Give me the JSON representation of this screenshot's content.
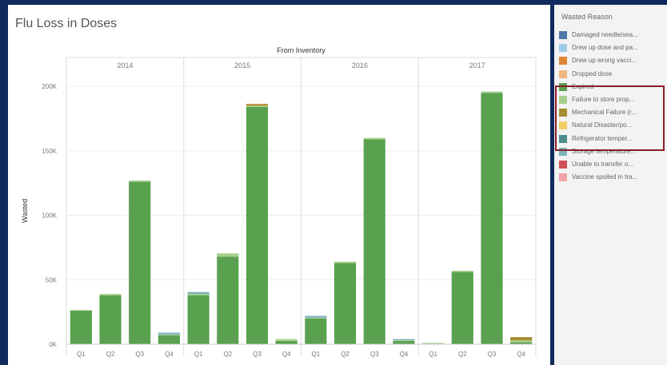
{
  "chart_data": {
    "type": "bar",
    "stacked": true,
    "title": "Flu Loss in Doses",
    "column_header": "From Inventory",
    "ylabel": "Wasted",
    "ylim": [
      0,
      210000
    ],
    "yticks": [
      0,
      50000,
      100000,
      150000,
      200000
    ],
    "ytick_labels": [
      "0K",
      "50K",
      "100K",
      "150K",
      "200K"
    ],
    "years": [
      "2014",
      "2015",
      "2016",
      "2017"
    ],
    "quarters": [
      "Q1",
      "Q2",
      "Q3",
      "Q4"
    ],
    "grid": true,
    "legend_position": "right",
    "series": [
      {
        "name": "Expired",
        "color": "#59a14f",
        "values": [
          [
            26000,
            38000,
            126000,
            7000
          ],
          [
            38000,
            68000,
            184000,
            2500
          ],
          [
            20000,
            63000,
            159000,
            2500
          ],
          [
            500,
            56000,
            195000,
            1500
          ]
        ]
      },
      {
        "name": "Failure to store prop...",
        "color": "#a8d08d",
        "values": [
          [
            500,
            1000,
            1000,
            500
          ],
          [
            1000,
            2500,
            1000,
            1500
          ],
          [
            500,
            1000,
            1000,
            500
          ],
          [
            500,
            1000,
            1000,
            1500
          ]
        ]
      },
      {
        "name": "Mechanical Failure (r...",
        "color": "#a58d2f",
        "values": [
          [
            0,
            0,
            0,
            0
          ],
          [
            0,
            0,
            1000,
            0
          ],
          [
            0,
            0,
            0,
            0
          ],
          [
            0,
            0,
            0,
            2500
          ]
        ]
      },
      {
        "name": "Drew up wrong vacci...",
        "color": "#e08434",
        "values": [
          [
            0,
            0,
            0,
            0
          ],
          [
            0,
            0,
            500,
            0
          ],
          [
            0,
            0,
            0,
            0
          ],
          [
            0,
            0,
            0,
            0
          ]
        ]
      },
      {
        "name": "Storage temperature...",
        "color": "#7fb2bd",
        "values": [
          [
            0,
            0,
            0,
            1500
          ],
          [
            1500,
            0,
            0,
            0
          ],
          [
            1500,
            0,
            0,
            1000
          ],
          [
            0,
            0,
            0,
            0
          ]
        ]
      }
    ]
  },
  "legend": {
    "title": "Wasted Reason",
    "items": [
      {
        "label": "Damaged needle/sea...",
        "color": "#4e79a7"
      },
      {
        "label": "Drew up dose and pa...",
        "color": "#a0cbe8"
      },
      {
        "label": "Drew up wrong vacci...",
        "color": "#e08434"
      },
      {
        "label": "Dropped dose",
        "color": "#f1b77f"
      },
      {
        "label": "Expired",
        "color": "#59a14f"
      },
      {
        "label": "Failure to store prop...",
        "color": "#a8d08d"
      },
      {
        "label": "Mechanical Failure (r...",
        "color": "#a58d2f"
      },
      {
        "label": "Natural Disaster/po...",
        "color": "#f1ce63"
      },
      {
        "label": "Refrigerator temper...",
        "color": "#4a8f8c"
      },
      {
        "label": "Storage temperature...",
        "color": "#7fb2bd"
      },
      {
        "label": "Unable to transfer o...",
        "color": "#d15055"
      },
      {
        "label": "Vaccine spoiled in tra...",
        "color": "#f2a3a7"
      }
    ]
  }
}
